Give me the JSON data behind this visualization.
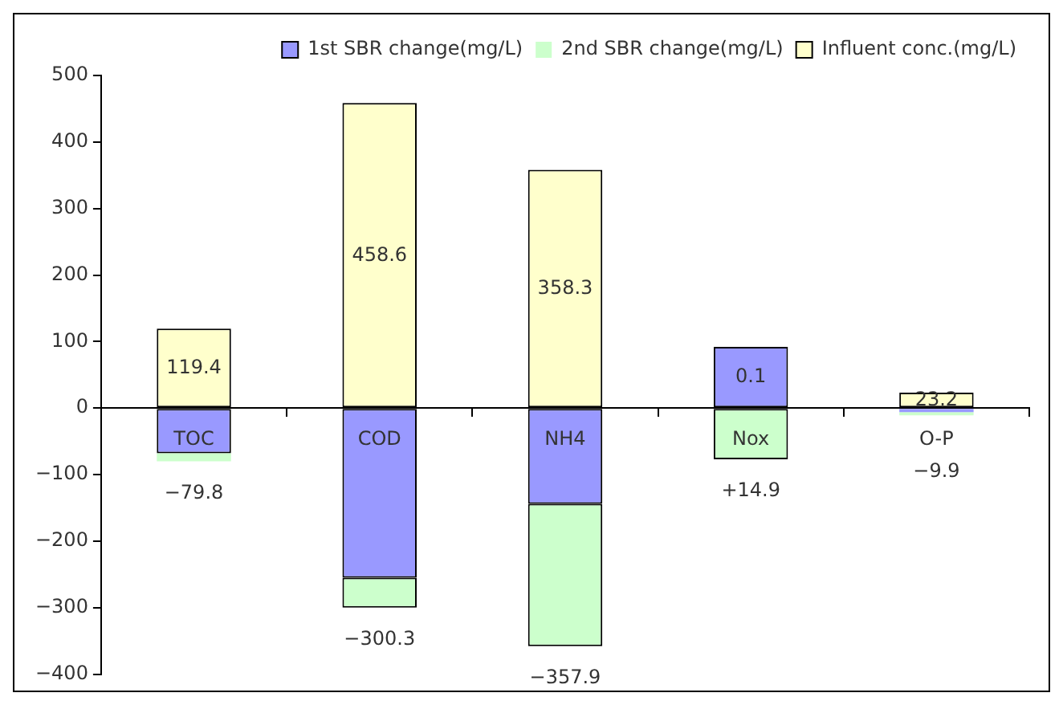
{
  "chart_data": {
    "type": "bar",
    "stacked": true,
    "categories": [
      "TOC",
      "COD",
      "NH4",
      "Nox",
      "O-P"
    ],
    "series": [
      {
        "name": "1st SBR change(mg/L)",
        "color": "#9999ff",
        "values": [
          -68,
          -255,
          -144,
          92,
          -6
        ]
      },
      {
        "name": "2nd SBR change(mg/L)",
        "color": "#ccffcc",
        "values": [
          -12,
          -45,
          -214,
          -77,
          -5
        ]
      },
      {
        "name": "Influent conc.(mg/L)",
        "color": "#ffffcc",
        "values": [
          119.4,
          458.6,
          358.3,
          null,
          23.2
        ],
        "value_labels": [
          "119.4",
          "458.6",
          "358.3",
          "0.1",
          "23.2"
        ]
      }
    ],
    "ylim": [
      -400,
      500
    ],
    "yticks": [
      -400,
      -300,
      -200,
      -100,
      0,
      100,
      200,
      300,
      400,
      500
    ],
    "legend": "top right",
    "annotations": [
      "−79.8",
      "−300.3",
      "−357.9",
      "+14.9",
      "−9.9"
    ]
  }
}
